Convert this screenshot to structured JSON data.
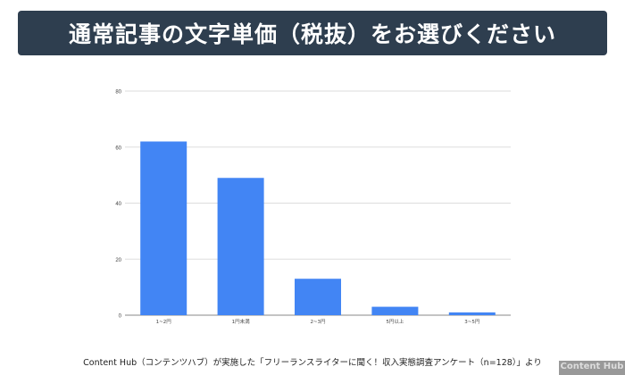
{
  "header": {
    "title": "通常記事の文字単価（税抜）をお選びください"
  },
  "chart_data": {
    "type": "bar",
    "categories": [
      "1~2円",
      "1円未満",
      "2~3円",
      "5円以上",
      "3~5円"
    ],
    "values": [
      62,
      49,
      13,
      3,
      1
    ],
    "title": "",
    "xlabel": "",
    "ylabel": "",
    "ylim": [
      0,
      80
    ],
    "yticks": [
      0,
      20,
      40,
      60,
      80
    ],
    "grid": true,
    "color": "#4285f4"
  },
  "footer": {
    "source": "Content Hub（コンテンツハブ）が実施した「フリーランスライターに聞く！収入実態調査アンケート（n=128）」より"
  },
  "logo": {
    "text": "Content Hub"
  }
}
